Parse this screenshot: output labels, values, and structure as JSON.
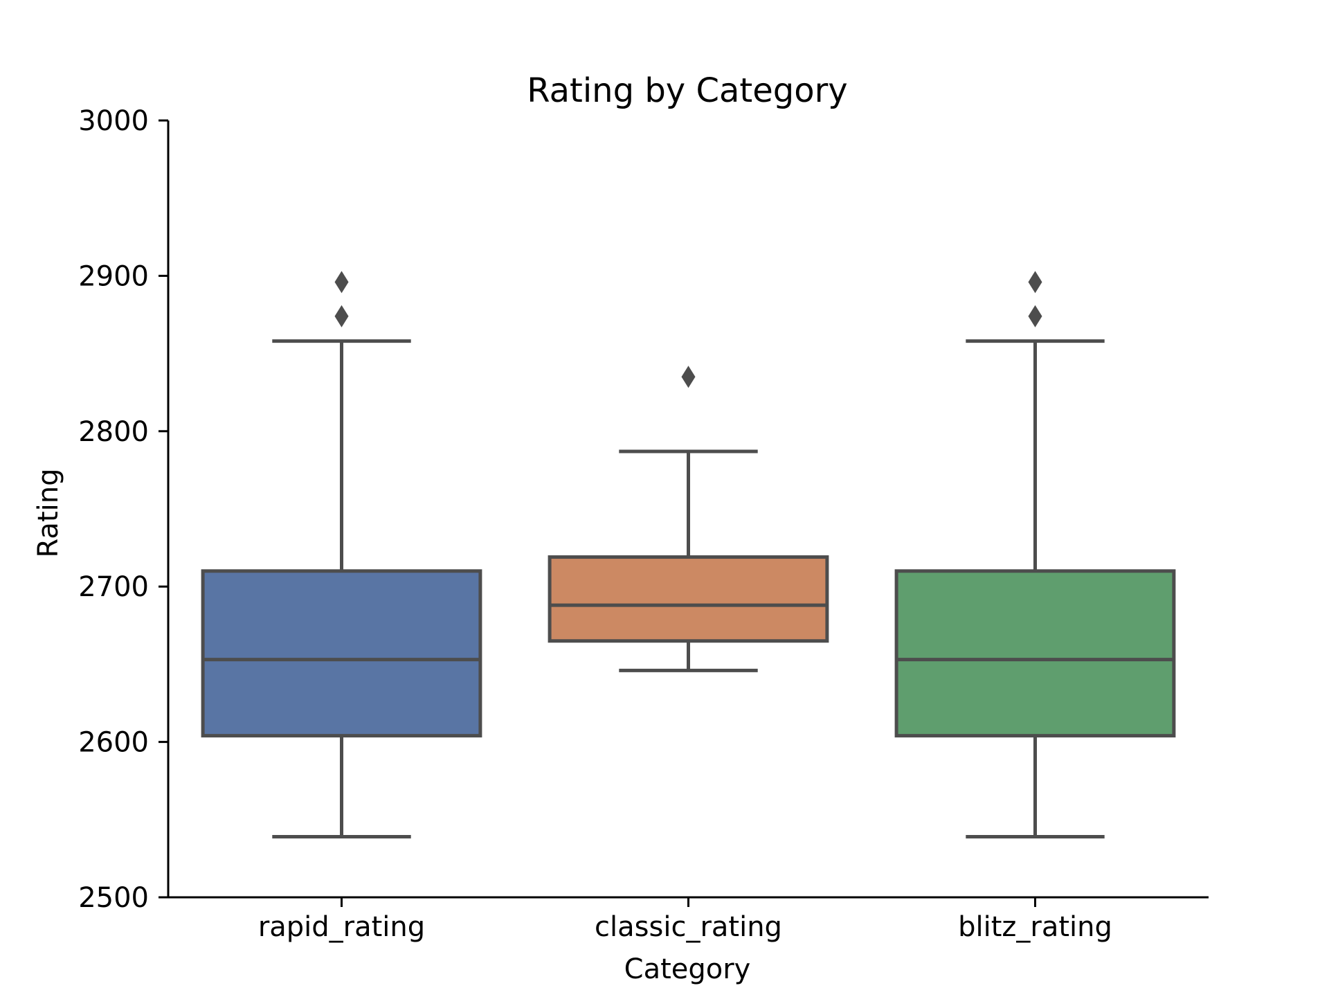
{
  "chart_data": {
    "type": "box",
    "title": "Rating by Category",
    "xlabel": "Category",
    "ylabel": "Rating",
    "ylim": [
      2500,
      3000
    ],
    "yticks": [
      2500,
      2600,
      2700,
      2800,
      2900,
      3000
    ],
    "categories": [
      "rapid_rating",
      "classic_rating",
      "blitz_rating"
    ],
    "grid": false,
    "legend": "none",
    "box_edge_color": "#4d4d4d",
    "boxes": [
      {
        "category": "rapid_rating",
        "color": "#5975a4",
        "whisker_low": 2539,
        "q1": 2604,
        "median": 2653,
        "q3": 2710,
        "whisker_high": 2858,
        "outliers": [
          2874,
          2896
        ]
      },
      {
        "category": "classic_rating",
        "color": "#cc8963",
        "whisker_low": 2646,
        "q1": 2665,
        "median": 2688,
        "q3": 2719,
        "whisker_high": 2787,
        "outliers": [
          2835
        ]
      },
      {
        "category": "blitz_rating",
        "color": "#5f9e6e",
        "whisker_low": 2539,
        "q1": 2604,
        "median": 2653,
        "q3": 2710,
        "whisker_high": 2858,
        "outliers": [
          2874,
          2896
        ]
      }
    ]
  }
}
